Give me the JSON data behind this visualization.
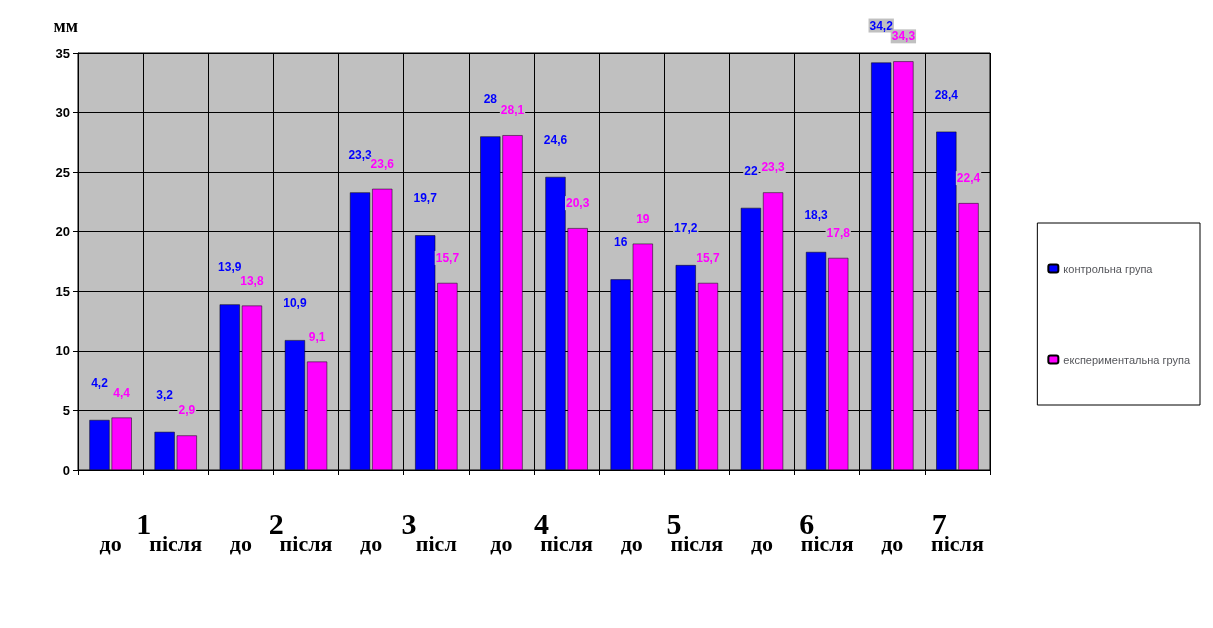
{
  "chart_data": {
    "type": "bar",
    "ylabel": "мм",
    "categories": [
      "до",
      "після",
      "до",
      "після",
      "до",
      "післ",
      "до",
      "після",
      "до",
      "після",
      "до",
      "після",
      "до",
      "після"
    ],
    "annotations": [
      "1",
      "2",
      "3",
      "4",
      "5",
      "6",
      "7"
    ],
    "series": [
      {
        "name": "контрольна група",
        "color": "#0000ff",
        "values": [
          4.2,
          3.2,
          13.9,
          10.9,
          23.3,
          19.7,
          28,
          24.6,
          16,
          17.2,
          22,
          18.3,
          34.2,
          28.4
        ],
        "value_labels": [
          "4,2",
          "3,2",
          "13,9",
          "10,9",
          "23,3",
          "19,7",
          "28",
          "24,6",
          "16",
          "17,2",
          "22",
          "18,3",
          "34,2",
          "28,4"
        ]
      },
      {
        "name": "експериментальна група",
        "color": "#ff00ff",
        "values": [
          4.4,
          2.9,
          13.8,
          9.1,
          23.6,
          15.7,
          28.1,
          20.3,
          19,
          15.7,
          23.3,
          17.8,
          34.3,
          22.4
        ],
        "value_labels": [
          "4,4",
          "2,9",
          "13,8",
          "9,1",
          "23,6",
          "15,7",
          "28,1",
          "20,3",
          "19",
          "15,7",
          "23,3",
          "17,8",
          "34,3",
          "22,4"
        ]
      }
    ],
    "ylim": [
      0,
      35
    ],
    "yticks": [
      0,
      5,
      10,
      15,
      20,
      25,
      30,
      35
    ],
    "grid": true,
    "legend": "right"
  }
}
